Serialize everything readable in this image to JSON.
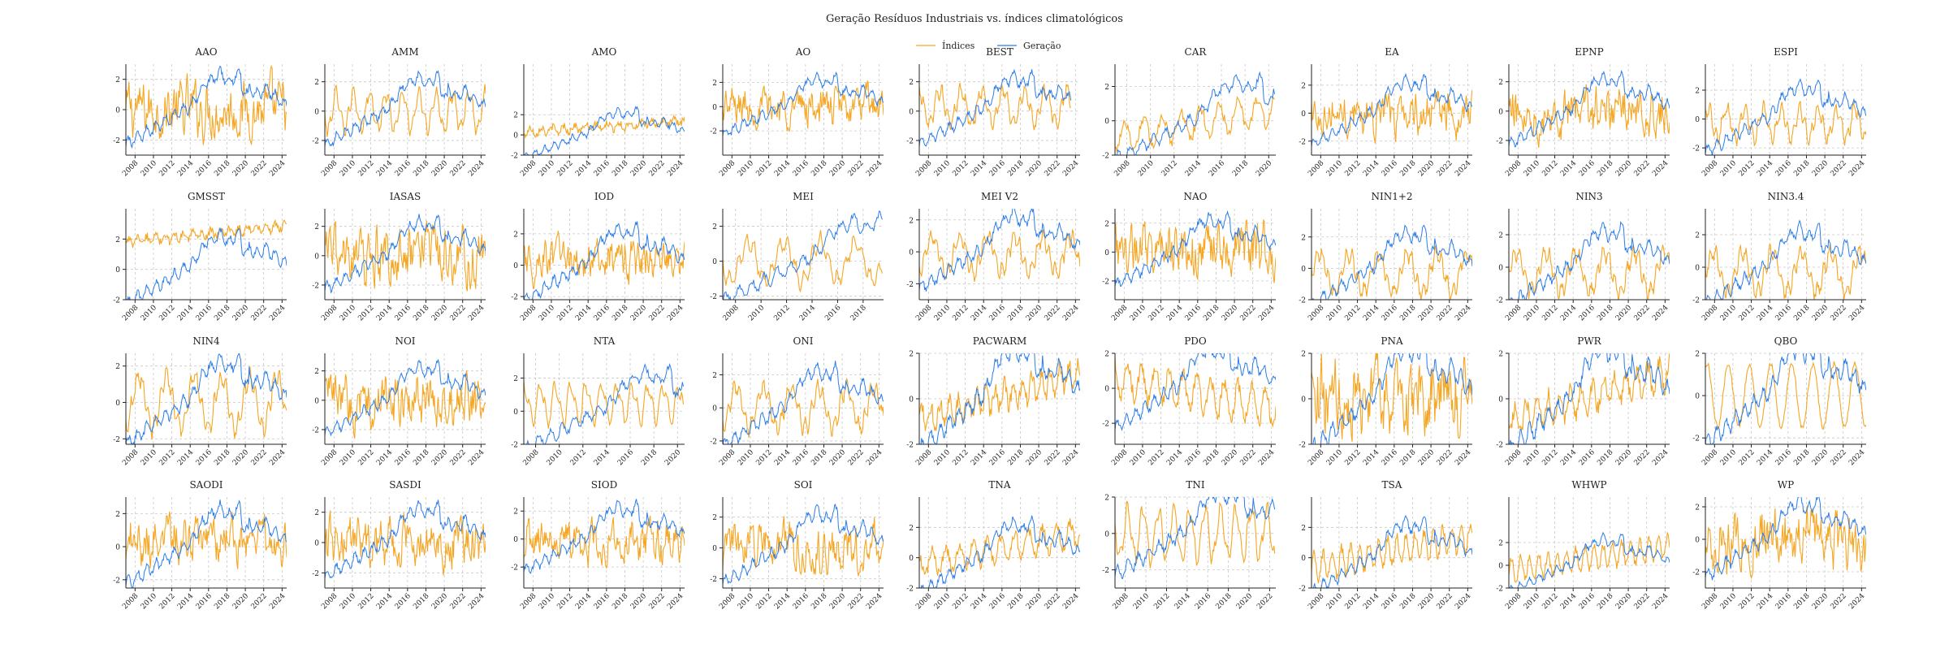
{
  "figure": {
    "title": "Geração Resíduos Industriais vs. índices climatológicos",
    "legend": {
      "placement": "top-center",
      "items": [
        {
          "label": "Índices",
          "color": "#f5a623"
        },
        {
          "label": "Geração",
          "color": "#2b7de9"
        }
      ]
    },
    "colors": {
      "indices": "#f5a623",
      "geracao": "#2b7de9",
      "grid": "#c8c8c8",
      "axis": "#222222"
    }
  },
  "chart_data": [
    {
      "type": "line",
      "title": "AAO",
      "xlim": [
        2007,
        2024.5
      ],
      "ylim": [
        -3,
        3
      ],
      "xticks": [
        2008,
        2010,
        2012,
        2014,
        2016,
        2018,
        2020,
        2022,
        2024
      ],
      "yticks": [
        -2,
        0,
        2
      ],
      "index": {
        "pattern": "noise",
        "amp": 1.3,
        "offset": 0,
        "period": 0.7
      },
      "generation_end": 2024.5,
      "grid": true
    },
    {
      "type": "line",
      "title": "AMM",
      "xlim": [
        2007,
        2024.5
      ],
      "ylim": [
        -3,
        3.2
      ],
      "xticks": [
        2008,
        2010,
        2012,
        2014,
        2016,
        2018,
        2020,
        2022,
        2024
      ],
      "yticks": [
        -2,
        0,
        2
      ],
      "index": {
        "pattern": "wave",
        "amp": 1.2,
        "offset": 0,
        "period": 1.8
      },
      "generation_end": 2024.5,
      "grid": true
    },
    {
      "type": "line",
      "title": "AMO",
      "xlim": [
        2007,
        2024.5
      ],
      "ylim": [
        -2,
        7
      ],
      "xticks": [
        2008,
        2010,
        2012,
        2014,
        2016,
        2018,
        2020,
        2022,
        2024
      ],
      "yticks": [
        -2,
        0,
        2
      ],
      "index": {
        "pattern": "trend",
        "amp": 0.7,
        "offset": 0.3,
        "period": 1.2
      },
      "generation_end": 2024.5,
      "grid": true
    },
    {
      "type": "line",
      "title": "AO",
      "xlim": [
        2007,
        2024.5
      ],
      "ylim": [
        -4,
        3.5
      ],
      "xticks": [
        2008,
        2010,
        2012,
        2014,
        2016,
        2018,
        2020,
        2022,
        2024
      ],
      "yticks": [
        -2,
        0,
        2
      ],
      "index": {
        "pattern": "noise",
        "amp": 1.1,
        "offset": 0,
        "period": 0.7
      },
      "generation_end": 2024.5,
      "grid": true
    },
    {
      "type": "line",
      "title": "BEST",
      "xlim": [
        2007,
        2024.5
      ],
      "ylim": [
        -3,
        3.2
      ],
      "xticks": [
        2008,
        2010,
        2012,
        2014,
        2016,
        2018,
        2020,
        2022,
        2024
      ],
      "yticks": [
        -2,
        0,
        2
      ],
      "index": {
        "pattern": "wave",
        "amp": 1.1,
        "offset": 0.3,
        "period": 2.3
      },
      "generation_end": 2023.5,
      "grid": true
    },
    {
      "type": "line",
      "title": "CAR",
      "xlim": [
        2007,
        2020.6
      ],
      "ylim": [
        -2,
        3.3
      ],
      "xticks": [
        2008,
        2010,
        2012,
        2014,
        2016,
        2018,
        2020
      ],
      "yticks": [
        -2,
        0,
        2
      ],
      "index": {
        "pattern": "trendwave",
        "amp": 0.8,
        "offset": 0,
        "period": 1.6
      },
      "generation_end": 2020.5,
      "grid": true
    },
    {
      "type": "line",
      "title": "EA",
      "xlim": [
        2007,
        2024.5
      ],
      "ylim": [
        -3,
        3.5
      ],
      "xticks": [
        2008,
        2010,
        2012,
        2014,
        2016,
        2018,
        2020,
        2022,
        2024
      ],
      "yticks": [
        -2,
        0,
        2
      ],
      "index": {
        "pattern": "noise",
        "amp": 1.0,
        "offset": 0,
        "period": 0.6
      },
      "generation_end": 2024.5,
      "grid": true
    },
    {
      "type": "line",
      "title": "EPNP",
      "xlim": [
        2007,
        2024.5
      ],
      "ylim": [
        -3,
        3.2
      ],
      "xticks": [
        2008,
        2010,
        2012,
        2014,
        2016,
        2018,
        2020,
        2022,
        2024
      ],
      "yticks": [
        -2,
        0,
        2
      ],
      "index": {
        "pattern": "noise",
        "amp": 1.1,
        "offset": 0,
        "period": 0.6
      },
      "generation_end": 2024.5,
      "grid": true
    },
    {
      "type": "line",
      "title": "ESPI",
      "xlim": [
        2007,
        2024.5
      ],
      "ylim": [
        -2.5,
        3.8
      ],
      "xticks": [
        2008,
        2010,
        2012,
        2014,
        2016,
        2018,
        2020,
        2022,
        2024
      ],
      "yticks": [
        -2,
        0,
        2
      ],
      "index": {
        "pattern": "wave",
        "amp": 1.0,
        "offset": -0.3,
        "period": 2.0
      },
      "generation_end": 2024.5,
      "grid": true
    },
    {
      "type": "line",
      "title": "GMSST",
      "xlim": [
        2007,
        2024.5
      ],
      "ylim": [
        -2,
        4
      ],
      "xticks": [
        2008,
        2010,
        2012,
        2014,
        2016,
        2018,
        2020,
        2022,
        2024
      ],
      "yticks": [
        -2,
        0,
        2
      ],
      "index": {
        "pattern": "trend",
        "amp": 0.5,
        "offset": 1.8,
        "period": 1.0
      },
      "generation_end": 2024.5,
      "grid": true
    },
    {
      "type": "line",
      "title": "IASAS",
      "xlim": [
        2007,
        2024.5
      ],
      "ylim": [
        -3,
        3.2
      ],
      "xticks": [
        2008,
        2010,
        2012,
        2014,
        2016,
        2018,
        2020,
        2022,
        2024
      ],
      "yticks": [
        -2,
        0,
        2
      ],
      "index": {
        "pattern": "noise",
        "amp": 1.3,
        "offset": 0,
        "period": 0.5
      },
      "generation_end": 2024.5,
      "grid": true
    },
    {
      "type": "line",
      "title": "IOD",
      "xlim": [
        2007,
        2024.5
      ],
      "ylim": [
        -2.2,
        3.6
      ],
      "xticks": [
        2008,
        2010,
        2012,
        2014,
        2016,
        2018,
        2020,
        2022,
        2024
      ],
      "yticks": [
        -2,
        0,
        2
      ],
      "index": {
        "pattern": "noise",
        "amp": 0.9,
        "offset": 0.3,
        "period": 0.8
      },
      "generation_end": 2024.5,
      "grid": true
    },
    {
      "type": "line",
      "title": "MEI",
      "xlim": [
        2007,
        2019.6
      ],
      "ylim": [
        -2.2,
        3
      ],
      "xticks": [
        2008,
        2010,
        2012,
        2014,
        2016,
        2018
      ],
      "yticks": [
        -2,
        0,
        2
      ],
      "index": {
        "pattern": "wave",
        "amp": 1.1,
        "offset": 0,
        "period": 2.8
      },
      "generation_end": 2019.5,
      "grid": true
    },
    {
      "type": "line",
      "title": "MEI V2",
      "xlim": [
        2007,
        2024.5
      ],
      "ylim": [
        -3,
        2.7
      ],
      "xticks": [
        2008,
        2010,
        2012,
        2014,
        2016,
        2018,
        2020,
        2022,
        2024
      ],
      "yticks": [
        -2,
        0,
        2
      ],
      "index": {
        "pattern": "wave",
        "amp": 1.1,
        "offset": -0.2,
        "period": 3.0
      },
      "generation_end": 2024.5,
      "grid": true
    },
    {
      "type": "line",
      "title": "NAO",
      "xlim": [
        2007,
        2024.5
      ],
      "ylim": [
        -3.3,
        3
      ],
      "xticks": [
        2008,
        2010,
        2012,
        2014,
        2016,
        2018,
        2020,
        2022,
        2024
      ],
      "yticks": [
        -2,
        0,
        2
      ],
      "index": {
        "pattern": "noise",
        "amp": 1.3,
        "offset": 0,
        "period": 0.6
      },
      "generation_end": 2024.5,
      "grid": true
    },
    {
      "type": "line",
      "title": "NIN1+2",
      "xlim": [
        2007,
        2024.5
      ],
      "ylim": [
        -2,
        3.8
      ],
      "xticks": [
        2008,
        2010,
        2012,
        2014,
        2016,
        2018,
        2020,
        2022,
        2024
      ],
      "yticks": [
        -2,
        0,
        2
      ],
      "index": {
        "pattern": "wave",
        "amp": 1.2,
        "offset": -0.3,
        "period": 3.2
      },
      "generation_end": 2024.5,
      "grid": true
    },
    {
      "type": "line",
      "title": "NIN3",
      "xlim": [
        2007,
        2024.5
      ],
      "ylim": [
        -2,
        3.6
      ],
      "xticks": [
        2008,
        2010,
        2012,
        2014,
        2016,
        2018,
        2020,
        2022,
        2024
      ],
      "yticks": [
        -2,
        0,
        2
      ],
      "index": {
        "pattern": "wave",
        "amp": 1.2,
        "offset": -0.3,
        "period": 3.2
      },
      "generation_end": 2024.5,
      "grid": true
    },
    {
      "type": "line",
      "title": "NIN3.4",
      "xlim": [
        2007,
        2024.5
      ],
      "ylim": [
        -2,
        3.6
      ],
      "xticks": [
        2008,
        2010,
        2012,
        2014,
        2016,
        2018,
        2020,
        2022,
        2024
      ],
      "yticks": [
        -2,
        0,
        2
      ],
      "index": {
        "pattern": "wave",
        "amp": 1.2,
        "offset": -0.3,
        "period": 3.2
      },
      "generation_end": 2024.5,
      "grid": true
    },
    {
      "type": "line",
      "title": "NIN4",
      "xlim": [
        2007,
        2024.5
      ],
      "ylim": [
        -2.3,
        2.7
      ],
      "xticks": [
        2008,
        2010,
        2012,
        2014,
        2016,
        2018,
        2020,
        2022,
        2024
      ],
      "yticks": [
        -2,
        0,
        2
      ],
      "index": {
        "pattern": "wave",
        "amp": 1.4,
        "offset": 0,
        "period": 3.0
      },
      "generation_end": 2024.5,
      "grid": true
    },
    {
      "type": "line",
      "title": "NOI",
      "xlim": [
        2007,
        2024.5
      ],
      "ylim": [
        -3,
        3.2
      ],
      "xticks": [
        2008,
        2010,
        2012,
        2014,
        2016,
        2018,
        2020,
        2022,
        2024
      ],
      "yticks": [
        -2,
        0,
        2
      ],
      "index": {
        "pattern": "noise",
        "amp": 1.2,
        "offset": 0,
        "period": 0.6
      },
      "generation_end": 2024.5,
      "grid": true
    },
    {
      "type": "line",
      "title": "NTA",
      "xlim": [
        2007,
        2020.6
      ],
      "ylim": [
        -2,
        3.5
      ],
      "xticks": [
        2008,
        2010,
        2012,
        2014,
        2016,
        2018,
        2020
      ],
      "yticks": [
        -2,
        0,
        2
      ],
      "index": {
        "pattern": "wave",
        "amp": 1.0,
        "offset": 0.5,
        "period": 1.3
      },
      "generation_end": 2020.5,
      "grid": true
    },
    {
      "type": "line",
      "title": "ONI",
      "xlim": [
        2007,
        2024.5
      ],
      "ylim": [
        -2.2,
        3.3
      ],
      "xticks": [
        2008,
        2010,
        2012,
        2014,
        2016,
        2018,
        2020,
        2022,
        2024
      ],
      "yticks": [
        -2,
        0,
        2
      ],
      "index": {
        "pattern": "wave",
        "amp": 1.2,
        "offset": 0,
        "period": 3.0
      },
      "generation_end": 2024.5,
      "grid": true
    },
    {
      "type": "line",
      "title": "PACWARM",
      "xlim": [
        2007,
        2024.5
      ],
      "ylim": [
        -2,
        2
      ],
      "xticks": [
        2008,
        2010,
        2012,
        2014,
        2016,
        2018,
        2020,
        2022,
        2024
      ],
      "yticks": [
        -2,
        0,
        2
      ],
      "index": {
        "pattern": "trendwave",
        "amp": 0.5,
        "offset": 0,
        "period": 1.0
      },
      "generation_end": 2024.5,
      "grid": true
    },
    {
      "type": "line",
      "title": "PDO",
      "xlim": [
        2007,
        2024.5
      ],
      "ylim": [
        -3.2,
        2
      ],
      "xticks": [
        2008,
        2010,
        2012,
        2014,
        2016,
        2018,
        2020,
        2022,
        2024
      ],
      "yticks": [
        -2,
        0,
        2
      ],
      "index": {
        "pattern": "declining",
        "amp": 1.0,
        "offset": 0,
        "period": 1.5
      },
      "generation_end": 2024.5,
      "grid": true
    },
    {
      "type": "line",
      "title": "PNA",
      "xlim": [
        2007,
        2024.5
      ],
      "ylim": [
        -2,
        2
      ],
      "xticks": [
        2008,
        2010,
        2012,
        2014,
        2016,
        2018,
        2020,
        2022,
        2024
      ],
      "yticks": [
        -2,
        0,
        2
      ],
      "index": {
        "pattern": "noise",
        "amp": 1.2,
        "offset": 0,
        "period": 0.5
      },
      "generation_end": 2024.5,
      "grid": true
    },
    {
      "type": "line",
      "title": "PWR",
      "xlim": [
        2007,
        2024.5
      ],
      "ylim": [
        -2,
        2
      ],
      "xticks": [
        2008,
        2010,
        2012,
        2014,
        2016,
        2018,
        2020,
        2022,
        2024
      ],
      "yticks": [
        -2,
        0,
        2
      ],
      "index": {
        "pattern": "trendwave",
        "amp": 0.6,
        "offset": 0,
        "period": 1.2
      },
      "generation_end": 2024.5,
      "grid": true
    },
    {
      "type": "line",
      "title": "QBO",
      "xlim": [
        2007,
        2024.5
      ],
      "ylim": [
        -2.3,
        2
      ],
      "xticks": [
        2008,
        2010,
        2012,
        2014,
        2016,
        2018,
        2020,
        2022,
        2024
      ],
      "yticks": [
        -2,
        0,
        2
      ],
      "index": {
        "pattern": "qbo",
        "amp": 1.5,
        "offset": 0,
        "period": 2.3
      },
      "generation_end": 2024.5,
      "grid": true
    },
    {
      "type": "line",
      "title": "SAODI",
      "xlim": [
        2007,
        2024.5
      ],
      "ylim": [
        -2.5,
        3
      ],
      "xticks": [
        2008,
        2010,
        2012,
        2014,
        2016,
        2018,
        2020,
        2022,
        2024
      ],
      "yticks": [
        -2,
        0,
        2
      ],
      "index": {
        "pattern": "noise",
        "amp": 1.0,
        "offset": 0.3,
        "period": 0.8
      },
      "generation_end": 2024.5,
      "grid": true
    },
    {
      "type": "line",
      "title": "SASDI",
      "xlim": [
        2007,
        2024.5
      ],
      "ylim": [
        -3,
        3
      ],
      "xticks": [
        2008,
        2010,
        2012,
        2014,
        2016,
        2018,
        2020,
        2022,
        2024
      ],
      "yticks": [
        -2,
        0,
        2
      ],
      "index": {
        "pattern": "noise",
        "amp": 1.1,
        "offset": 0,
        "period": 0.8
      },
      "generation_end": 2024.5,
      "grid": true
    },
    {
      "type": "line",
      "title": "SIOD",
      "xlim": [
        2007,
        2024.5
      ],
      "ylim": [
        -3.5,
        3
      ],
      "xticks": [
        2008,
        2010,
        2012,
        2014,
        2016,
        2018,
        2020,
        2022,
        2024
      ],
      "yticks": [
        -2,
        0,
        2
      ],
      "index": {
        "pattern": "noise",
        "amp": 1.1,
        "offset": 0,
        "period": 0.9
      },
      "generation_end": 2024.5,
      "grid": true
    },
    {
      "type": "line",
      "title": "SOI",
      "xlim": [
        2007,
        2024.5
      ],
      "ylim": [
        -2.6,
        3.3
      ],
      "xticks": [
        2008,
        2010,
        2012,
        2014,
        2016,
        2018,
        2020,
        2022,
        2024
      ],
      "yticks": [
        -2,
        0,
        2
      ],
      "index": {
        "pattern": "noise",
        "amp": 1.1,
        "offset": 0,
        "period": 0.7
      },
      "generation_end": 2024.5,
      "grid": true
    },
    {
      "type": "line",
      "title": "TNA",
      "xlim": [
        2007,
        2024.5
      ],
      "ylim": [
        -2,
        4
      ],
      "xticks": [
        2008,
        2010,
        2012,
        2014,
        2016,
        2018,
        2020,
        2022,
        2024
      ],
      "yticks": [
        -2,
        0,
        2
      ],
      "index": {
        "pattern": "trendwave",
        "amp": 0.8,
        "offset": 0.5,
        "period": 1.5
      },
      "generation_end": 2024.5,
      "grid": true
    },
    {
      "type": "line",
      "title": "TNI",
      "xlim": [
        2007,
        2022.6
      ],
      "ylim": [
        -3,
        2
      ],
      "xticks": [
        2008,
        2010,
        2012,
        2014,
        2016,
        2018,
        2020,
        2022
      ],
      "yticks": [
        -2,
        0,
        2
      ],
      "index": {
        "pattern": "wave",
        "amp": 1.3,
        "offset": 0,
        "period": 1.5
      },
      "generation_end": 2022.5,
      "grid": true
    },
    {
      "type": "line",
      "title": "TSA",
      "xlim": [
        2007,
        2024.5
      ],
      "ylim": [
        -2,
        4
      ],
      "xticks": [
        2008,
        2010,
        2012,
        2014,
        2016,
        2018,
        2020,
        2022,
        2024
      ],
      "yticks": [
        -2,
        0,
        2
      ],
      "index": {
        "pattern": "trendwave",
        "amp": 0.9,
        "offset": 0.3,
        "period": 1.0
      },
      "generation_end": 2024.5,
      "grid": true
    },
    {
      "type": "line",
      "title": "WHWP",
      "xlim": [
        2007,
        2024.5
      ],
      "ylim": [
        -2,
        6
      ],
      "xticks": [
        2008,
        2010,
        2012,
        2014,
        2016,
        2018,
        2020,
        2022,
        2024
      ],
      "yticks": [
        -2,
        0,
        2
      ],
      "index": {
        "pattern": "trendwave",
        "amp": 1.0,
        "offset": 0.5,
        "period": 1.0
      },
      "generation_end": 2024.5,
      "grid": true
    },
    {
      "type": "line",
      "title": "WP",
      "xlim": [
        2007,
        2024.5
      ],
      "ylim": [
        -3,
        2.6
      ],
      "xticks": [
        2008,
        2010,
        2012,
        2014,
        2016,
        2018,
        2020,
        2022,
        2024
      ],
      "yticks": [
        -2,
        0,
        2
      ],
      "index": {
        "pattern": "noise",
        "amp": 1.2,
        "offset": 0,
        "period": 0.5
      },
      "generation_end": 2024.5,
      "grid": true
    }
  ]
}
